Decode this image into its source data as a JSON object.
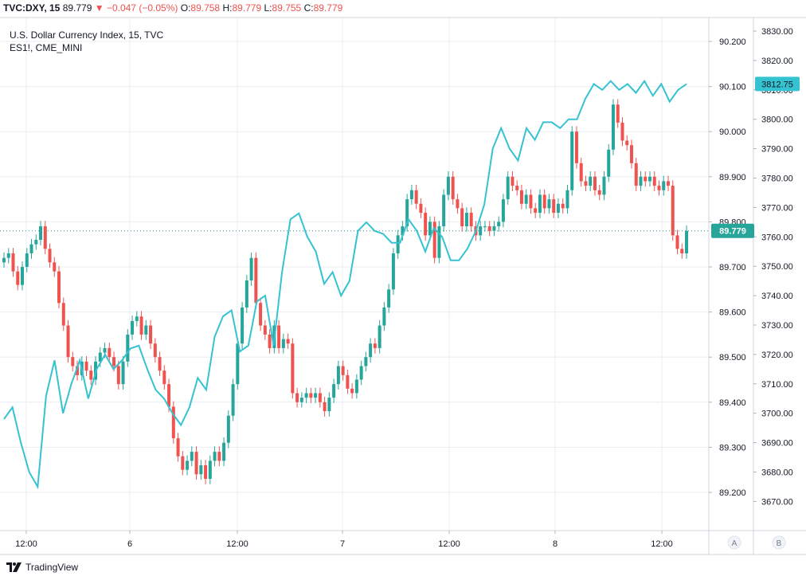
{
  "header": {
    "symbol": "TVC:DXY, 15",
    "last": "89.779",
    "arrow": "▼",
    "change": "−0.047 (−0.05%)",
    "o_label": "O:",
    "o_value": "89.758",
    "h_label": "H:",
    "h_value": "89.779",
    "l_label": "L:",
    "l_value": "89.755",
    "c_label": "C:",
    "c_value": "89.779"
  },
  "legend": {
    "main": "U.S. Dollar Currency Index, 15, TVC",
    "compare": "ES1!, CME_MINI"
  },
  "footer": {
    "brand": "TradingView"
  },
  "scale_buttons": [
    "A",
    "B"
  ],
  "colors": {
    "up": "#26a69a",
    "down": "#ef5350",
    "compare": "#35c2d1",
    "grid": "#e9edf3"
  },
  "chart_data": {
    "type": "line",
    "x_ticks": [
      "12:00",
      "6",
      "12:00",
      "7",
      "12:00",
      "8",
      "12:00"
    ],
    "y_left_ticks": [
      "90.200",
      "90.100",
      "90.000",
      "89.900",
      "89.800",
      "89.700",
      "89.600",
      "89.500",
      "89.400",
      "89.300",
      "89.200"
    ],
    "y_right_ticks": [
      "3830.00",
      "3820.00",
      "3810.00",
      "3800.00",
      "3790.00",
      "3780.00",
      "3770.00",
      "3760.00",
      "3750.00",
      "3740.00",
      "3730.00",
      "3720.00",
      "3710.00",
      "3700.00",
      "3690.00",
      "3680.00",
      "3670.00"
    ],
    "ylim_dxy": [
      89.15,
      90.25
    ],
    "ylim_es": [
      3662,
      3835
    ],
    "last_dxy_label": "89.779",
    "last_es_label": "3812.75",
    "series": [
      {
        "name": "U.S. Dollar Currency Index",
        "kind": "candles",
        "close": [
          89.72,
          89.73,
          89.69,
          89.66,
          89.7,
          89.73,
          89.75,
          89.76,
          89.79,
          89.74,
          89.71,
          89.69,
          89.62,
          89.57,
          89.5,
          89.48,
          89.46,
          89.49,
          89.47,
          89.45,
          89.49,
          89.51,
          89.52,
          89.5,
          89.48,
          89.44,
          89.49,
          89.55,
          89.58,
          89.59,
          89.55,
          89.57,
          89.53,
          89.5,
          89.47,
          89.44,
          89.39,
          89.32,
          89.28,
          89.25,
          89.27,
          89.29,
          89.24,
          89.26,
          89.23,
          89.27,
          89.29,
          89.27,
          89.31,
          89.37,
          89.44,
          89.53,
          89.61,
          89.67,
          89.72,
          89.62,
          89.57,
          89.55,
          89.52,
          89.57,
          89.52,
          89.54,
          89.53,
          89.42,
          89.4,
          89.41,
          89.42,
          89.41,
          89.42,
          89.4,
          89.38,
          89.41,
          89.44,
          89.48,
          89.46,
          89.43,
          89.42,
          89.45,
          89.48,
          89.5,
          89.53,
          89.52,
          89.57,
          89.61,
          89.65,
          89.73,
          89.77,
          89.79,
          89.85,
          89.87,
          89.84,
          89.82,
          89.77,
          89.8,
          89.72,
          89.79,
          89.86,
          89.9,
          89.85,
          89.83,
          89.79,
          89.82,
          89.79,
          89.77,
          89.79,
          89.79,
          89.78,
          89.79,
          89.8,
          89.85,
          89.9,
          89.88,
          89.87,
          89.84,
          89.86,
          89.83,
          89.82,
          89.86,
          89.83,
          89.85,
          89.82,
          89.84,
          89.83,
          89.87,
          90.0,
          89.93,
          89.89,
          89.88,
          89.9,
          89.87,
          89.86,
          89.9,
          89.96,
          90.06,
          90.02,
          89.98,
          89.97,
          89.93,
          89.88,
          89.9,
          89.89,
          89.9,
          89.88,
          89.87,
          89.89,
          89.88,
          89.77,
          89.74,
          89.73,
          89.78
        ]
      },
      {
        "name": "ES1!",
        "kind": "line",
        "values": [
          3698,
          3702,
          3690,
          3680,
          3675,
          3706,
          3718,
          3700,
          3710,
          3718,
          3705,
          3715,
          3720,
          3715,
          3718,
          3722,
          3723,
          3715,
          3708,
          3705,
          3700,
          3696,
          3702,
          3712,
          3708,
          3726,
          3733,
          3735,
          3721,
          3723,
          3738,
          3740,
          3723,
          3748,
          3766,
          3768,
          3760,
          3755,
          3744,
          3748,
          3740,
          3745,
          3762,
          3765,
          3762,
          3761,
          3758,
          3758,
          3766,
          3762,
          3755,
          3763,
          3760,
          3752,
          3752,
          3756,
          3762,
          3771,
          3790,
          3797,
          3790,
          3786,
          3797,
          3793,
          3799,
          3799,
          3797,
          3800,
          3800,
          3807,
          3812,
          3810,
          3813,
          3810,
          3812,
          3809,
          3813,
          3808,
          3812,
          3806,
          3810,
          3812
        ]
      }
    ]
  }
}
